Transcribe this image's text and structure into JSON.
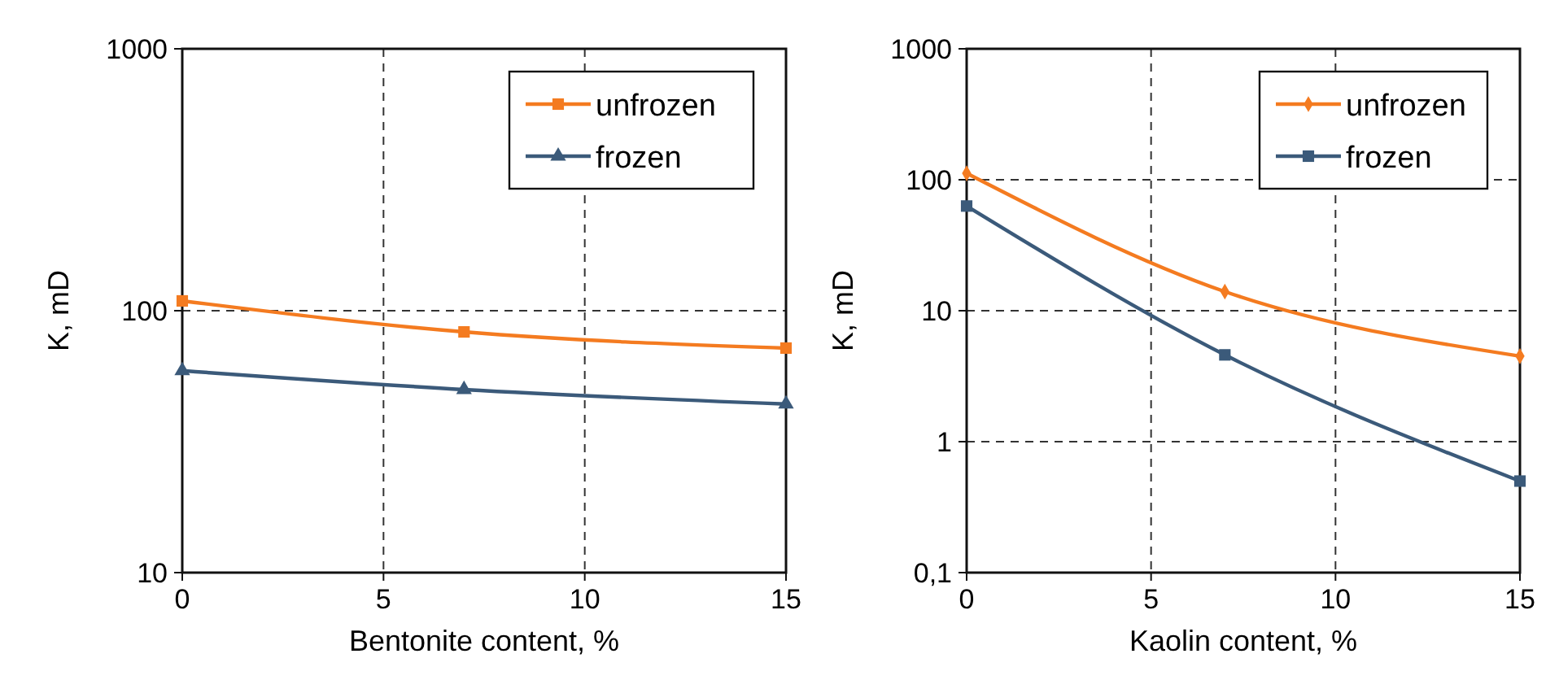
{
  "chart_data": [
    {
      "type": "line",
      "xlabel": "Bentonite content, %",
      "ylabel": "K, mD",
      "log": "y",
      "grid": true,
      "legend": "top right",
      "x": [
        0,
        7,
        15
      ],
      "xlim": [
        0,
        15
      ],
      "xticks": [
        0,
        5,
        10,
        15
      ],
      "ylim": [
        10,
        1000
      ],
      "yticks": [
        10,
        100,
        1000
      ],
      "series": [
        {
          "name": "unfrozen",
          "color": "#f47b20",
          "marker": "square",
          "values": [
            109,
            83,
            72
          ]
        },
        {
          "name": "frozen",
          "color": "#3b5a7a",
          "marker": "triangle",
          "values": [
            59,
            50,
            44
          ]
        }
      ]
    },
    {
      "type": "line",
      "xlabel": "Kaolin content, %",
      "ylabel": "K, mD",
      "log": "y",
      "grid": true,
      "legend": "top right",
      "x": [
        0,
        7,
        15
      ],
      "xlim": [
        0,
        15
      ],
      "xticks": [
        0,
        5,
        10,
        15
      ],
      "ylim": [
        0.1,
        1000
      ],
      "yticks": [
        {
          "value": 0.1,
          "label": "0,1"
        },
        1,
        10,
        100,
        1000
      ],
      "series": [
        {
          "name": "unfrozen",
          "color": "#f47b20",
          "marker": "diamond",
          "values": [
            112,
            14,
            4.5
          ]
        },
        {
          "name": "frozen",
          "color": "#3b5a7a",
          "marker": "square",
          "values": [
            63,
            4.6,
            0.5
          ]
        }
      ]
    }
  ]
}
